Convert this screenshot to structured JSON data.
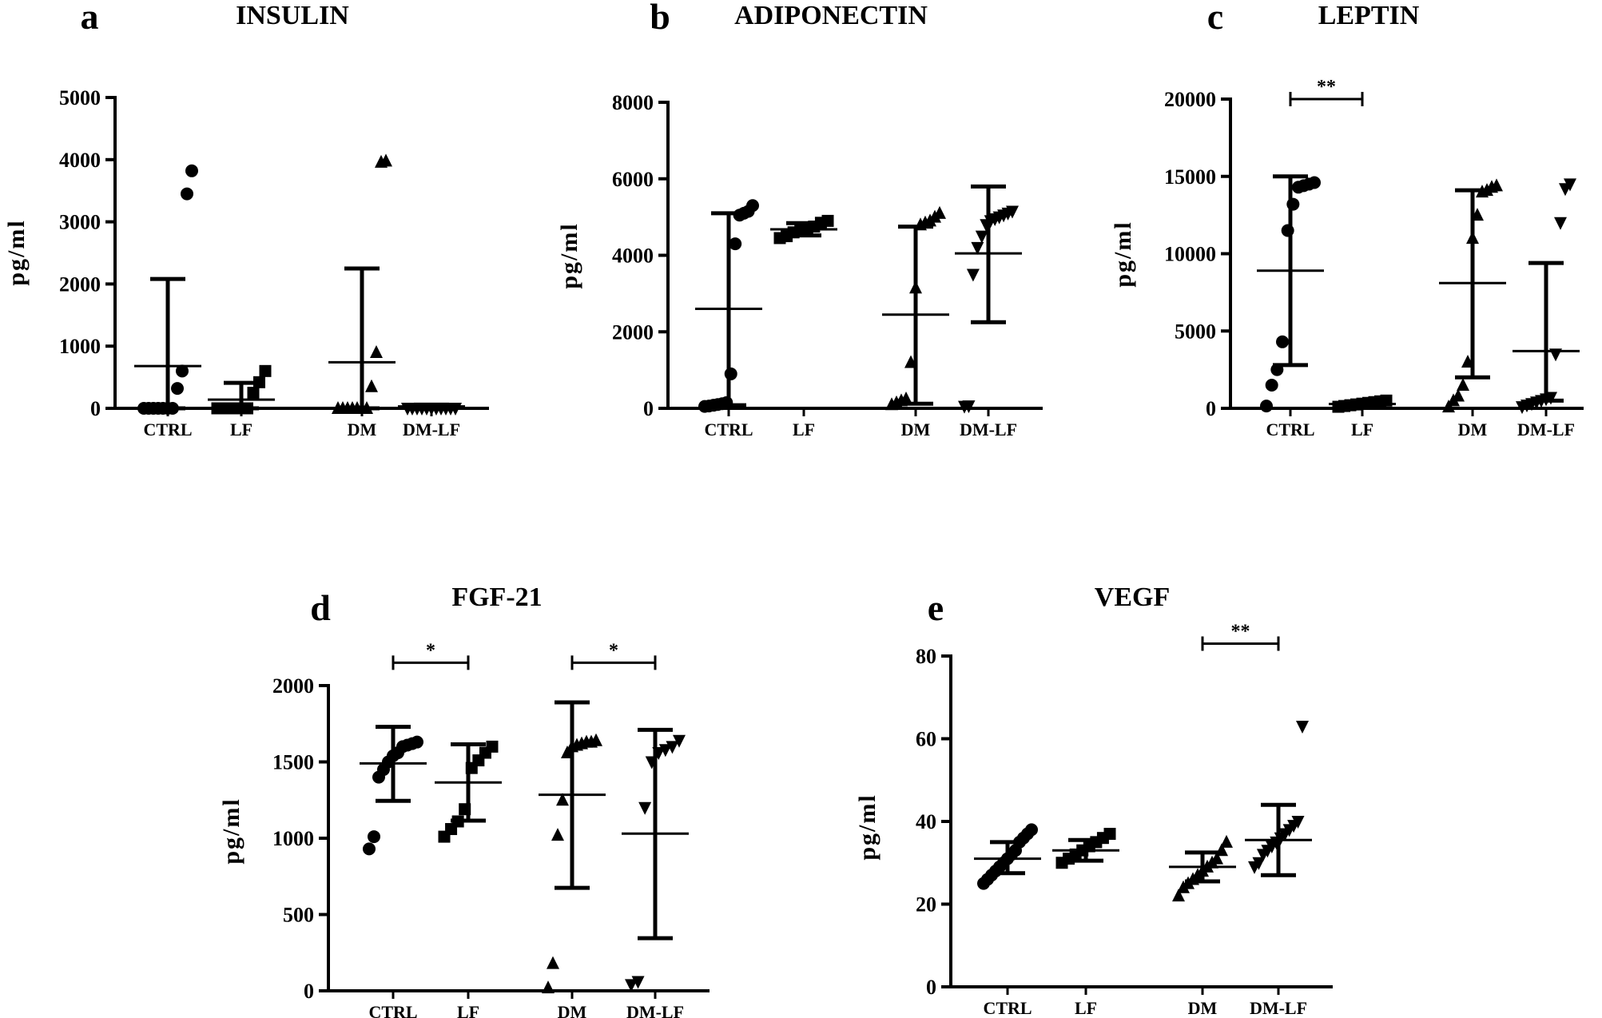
{
  "chart_data": [
    {
      "id": "a",
      "panel_label": "a",
      "type": "scatter",
      "title": "INSULIN",
      "ylabel": "pg/ml",
      "ylim": [
        0,
        5000
      ],
      "yticks": [
        0,
        1000,
        2000,
        3000,
        4000,
        5000
      ],
      "yticklabels": [
        "0",
        "1000",
        "2000",
        "3000",
        "4000",
        "5000"
      ],
      "categories": [
        "CTRL",
        "LF",
        "DM",
        "DM-LF"
      ],
      "significance": [],
      "groups": [
        {
          "name": "CTRL",
          "marker": "circle",
          "mean": 680,
          "sd_low": 0,
          "sd_high": 2080,
          "points": [
            0,
            0,
            0,
            0,
            0,
            0,
            0,
            320,
            600,
            3450,
            3820
          ]
        },
        {
          "name": "LF",
          "marker": "square",
          "mean": 140,
          "sd_low": 0,
          "sd_high": 410,
          "points": [
            0,
            0,
            0,
            0,
            0,
            0,
            250,
            420,
            600
          ]
        },
        {
          "name": "DM",
          "marker": "triangle-up",
          "mean": 740,
          "sd_low": 0,
          "sd_high": 2250,
          "points": [
            0,
            0,
            0,
            0,
            0,
            0,
            0,
            350,
            900,
            3960,
            3980
          ]
        },
        {
          "name": "DM-LF",
          "marker": "triangle-down",
          "mean": 30,
          "sd_low": 0,
          "sd_high": 60,
          "points": [
            0,
            0,
            0,
            0,
            0,
            0,
            0,
            0,
            0,
            0,
            0
          ]
        }
      ]
    },
    {
      "id": "b",
      "panel_label": "b",
      "type": "scatter",
      "title": "ADIPONECTIN",
      "ylabel": "pg/ml",
      "ylim": [
        0,
        8000
      ],
      "yticks": [
        0,
        2000,
        4000,
        6000,
        8000
      ],
      "yticklabels": [
        "0",
        "2000",
        "4000",
        "6000",
        "8000"
      ],
      "categories": [
        "CTRL",
        "LF",
        "DM",
        "DM-LF"
      ],
      "significance": [],
      "groups": [
        {
          "name": "CTRL",
          "marker": "circle",
          "mean": 2600,
          "sd_low": 80,
          "sd_high": 5100,
          "points": [
            50,
            60,
            80,
            100,
            120,
            150,
            900,
            4300,
            5050,
            5100,
            5150,
            5300
          ]
        },
        {
          "name": "LF",
          "marker": "square",
          "mean": 4680,
          "sd_low": 4520,
          "sd_high": 4840,
          "points": [
            4450,
            4500,
            4600,
            4680,
            4700,
            4750,
            4850,
            4900
          ]
        },
        {
          "name": "DM",
          "marker": "triangle-up",
          "mean": 2450,
          "sd_low": 120,
          "sd_high": 4750,
          "points": [
            100,
            150,
            200,
            250,
            1200,
            3150,
            4800,
            4850,
            4900,
            5000,
            5100
          ]
        },
        {
          "name": "DM-LF",
          "marker": "triangle-down",
          "mean": 4050,
          "sd_low": 2250,
          "sd_high": 5800,
          "points": [
            50,
            60,
            3500,
            4200,
            4500,
            4800,
            4900,
            4950,
            5000,
            5050,
            5100,
            5150
          ]
        }
      ]
    },
    {
      "id": "c",
      "panel_label": "c",
      "type": "scatter",
      "title": "LEPTIN",
      "ylabel": "pg/ml",
      "ylim": [
        0,
        20000
      ],
      "yticks": [
        0,
        5000,
        10000,
        15000,
        20000
      ],
      "yticklabels": [
        "0",
        "5000",
        "10000",
        "15000",
        "20000"
      ],
      "categories": [
        "CTRL",
        "LF",
        "DM",
        "DM-LF"
      ],
      "significance": [
        {
          "from": "CTRL",
          "to": "LF",
          "y": 20000,
          "label": "**"
        }
      ],
      "groups": [
        {
          "name": "CTRL",
          "marker": "circle",
          "mean": 8900,
          "sd_low": 2800,
          "sd_high": 15000,
          "points": [
            150,
            1500,
            2500,
            4300,
            11500,
            13200,
            14300,
            14400,
            14500,
            14600
          ]
        },
        {
          "name": "LF",
          "marker": "square",
          "mean": 280,
          "sd_low": 130,
          "sd_high": 430,
          "points": [
            100,
            150,
            200,
            250,
            300,
            350,
            400,
            450,
            500
          ]
        },
        {
          "name": "DM",
          "marker": "triangle-up",
          "mean": 8100,
          "sd_low": 2000,
          "sd_high": 14100,
          "points": [
            100,
            500,
            800,
            1500,
            3000,
            11000,
            12500,
            14000,
            14100,
            14300,
            14400
          ]
        },
        {
          "name": "DM-LF",
          "marker": "triangle-down",
          "mean": 3700,
          "sd_low": 500,
          "sd_high": 9400,
          "points": [
            100,
            200,
            300,
            400,
            500,
            600,
            700,
            3500,
            12000,
            14200,
            14500
          ]
        }
      ]
    },
    {
      "id": "d",
      "panel_label": "d",
      "type": "scatter",
      "title": "FGF-21",
      "ylabel": "pg/ml",
      "ylim": [
        0,
        2000
      ],
      "yticks": [
        0,
        500,
        1000,
        1500,
        2000
      ],
      "yticklabels": [
        "0",
        "500",
        "1000",
        "1500",
        "2000"
      ],
      "categories": [
        "CTRL",
        "LF",
        "DM",
        "DM-LF"
      ],
      "significance": [
        {
          "from": "CTRL",
          "to": "LF",
          "y": 2150,
          "label": "*"
        },
        {
          "from": "DM",
          "to": "DM-LF",
          "y": 2150,
          "label": "*"
        }
      ],
      "groups": [
        {
          "name": "CTRL",
          "marker": "circle",
          "mean": 1490,
          "sd_low": 1245,
          "sd_high": 1730,
          "points": [
            930,
            1010,
            1400,
            1450,
            1500,
            1540,
            1560,
            1600,
            1610,
            1620,
            1630
          ]
        },
        {
          "name": "LF",
          "marker": "square",
          "mean": 1365,
          "sd_low": 1115,
          "sd_high": 1615,
          "points": [
            1010,
            1060,
            1110,
            1190,
            1460,
            1510,
            1560,
            1600
          ]
        },
        {
          "name": "DM",
          "marker": "triangle-up",
          "mean": 1285,
          "sd_low": 675,
          "sd_high": 1890,
          "points": [
            20,
            180,
            1020,
            1250,
            1560,
            1600,
            1610,
            1620,
            1630,
            1630,
            1640
          ]
        },
        {
          "name": "DM-LF",
          "marker": "triangle-down",
          "mean": 1030,
          "sd_low": 345,
          "sd_high": 1710,
          "points": [
            40,
            60,
            1200,
            1500,
            1560,
            1580,
            1600,
            1640
          ]
        }
      ]
    },
    {
      "id": "e",
      "panel_label": "e",
      "type": "scatter",
      "title": "VEGF",
      "ylabel": "pg/ml",
      "ylim": [
        0,
        80
      ],
      "yticks": [
        0,
        20,
        40,
        60,
        80
      ],
      "yticklabels": [
        "0",
        "20",
        "40",
        "60",
        "80"
      ],
      "categories": [
        "CTRL",
        "LF",
        "DM",
        "DM-LF"
      ],
      "significance": [
        {
          "from": "DM",
          "to": "DM-LF",
          "y": 83,
          "label": "**"
        }
      ],
      "groups": [
        {
          "name": "CTRL",
          "marker": "circle",
          "mean": 31,
          "sd_low": 27.5,
          "sd_high": 35,
          "points": [
            25,
            26,
            27,
            28,
            29,
            30,
            31,
            32,
            33,
            35,
            36,
            37,
            38
          ]
        },
        {
          "name": "LF",
          "marker": "square",
          "mean": 33,
          "sd_low": 30.5,
          "sd_high": 35.5,
          "points": [
            30,
            31,
            32,
            33,
            34,
            35,
            36,
            37
          ]
        },
        {
          "name": "DM",
          "marker": "triangle-up",
          "mean": 29,
          "sd_low": 25.5,
          "sd_high": 32.5,
          "points": [
            22,
            24,
            25,
            26,
            27,
            28,
            29,
            30,
            31,
            33,
            35
          ]
        },
        {
          "name": "DM-LF",
          "marker": "triangle-down",
          "mean": 35.5,
          "sd_low": 27,
          "sd_high": 44,
          "points": [
            29,
            30,
            32,
            33,
            34,
            35,
            36,
            37,
            38,
            39,
            40,
            63
          ]
        }
      ]
    }
  ]
}
